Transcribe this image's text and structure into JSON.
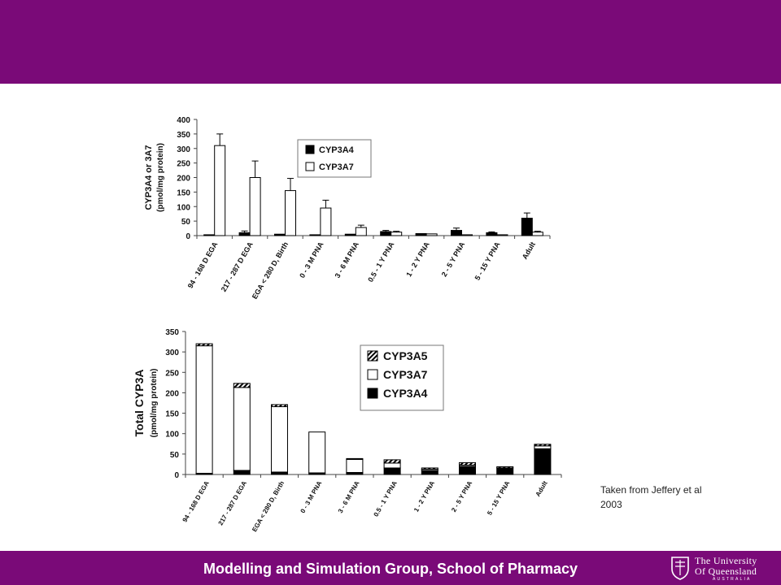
{
  "footer": {
    "text": "Modelling and Simulation Group, School of Pharmacy"
  },
  "logo": {
    "line1": "The University",
    "line2": "Of Queensland",
    "line3": "AUSTRALIA"
  },
  "caption": {
    "line1": "Taken from Jeffery et al",
    "line2": "2003"
  },
  "colors": {
    "band": "#7a0a78",
    "text_on_band": "#ffffff"
  },
  "chart_data": [
    {
      "type": "bar",
      "ylabel_line1": "CYP3A4 or 3A7",
      "ylabel_line2": "(pmol/mg protein)",
      "ylim": [
        0,
        400
      ],
      "yticks": [
        0,
        50,
        100,
        150,
        200,
        250,
        300,
        350,
        400
      ],
      "categories": [
        "94 - 168 D EGA",
        "217 - 287 D EGA",
        "EGA < 280 D, Birth",
        "0 - 3 M  PNA",
        "3 - 6 M  PNA",
        "0.5 - 1 Y  PNA",
        "1 - 2 Y  PNA",
        "2 - 5 Y  PNA",
        "5 - 15 Y  PNA",
        "Adult"
      ],
      "legend_position": "top-right",
      "series": [
        {
          "name": "CYP3A4",
          "fill": "#000000",
          "values": [
            3,
            10,
            5,
            3,
            5,
            14,
            7,
            18,
            10,
            60
          ],
          "errors": [
            0,
            6,
            0,
            0,
            0,
            4,
            0,
            8,
            3,
            18
          ]
        },
        {
          "name": "CYP3A7",
          "fill": "#ffffff",
          "values": [
            310,
            200,
            155,
            95,
            28,
            12,
            6,
            3,
            3,
            12
          ],
          "errors": [
            40,
            57,
            42,
            27,
            8,
            3,
            0,
            0,
            0,
            3
          ]
        }
      ]
    },
    {
      "type": "bar",
      "stacked": true,
      "ylabel_line1": "Total CYP3A",
      "ylabel_line2": "(pmol/mg protein)",
      "ylim": [
        0,
        350
      ],
      "yticks": [
        0,
        50,
        100,
        150,
        200,
        250,
        300,
        350
      ],
      "categories": [
        "94 - 168 D EGA",
        "217 - 287 D EGA",
        "EGA < 280 D, Birth",
        "0 - 3 M PNA",
        "3 - 6 M PNA",
        "0.5 - 1 Y PNA",
        "1 - 2 Y PNA",
        "2 - 5 Y PNA",
        "5 - 15 Y PNA",
        "Adult"
      ],
      "legend_position": "top-right",
      "legend_order": [
        "CYP3A5",
        "CYP3A7",
        "CYP3A4"
      ],
      "series": [
        {
          "name": "CYP3A4",
          "fill": "#000000",
          "values": [
            3,
            10,
            6,
            4,
            5,
            16,
            10,
            20,
            16,
            63
          ]
        },
        {
          "name": "CYP3A7",
          "fill": "#ffffff",
          "values": [
            312,
            203,
            160,
            100,
            32,
            12,
            3,
            3,
            0,
            7
          ]
        },
        {
          "name": "CYP3A5",
          "fill": "hatch",
          "values": [
            5,
            10,
            5,
            0,
            2,
            8,
            3,
            6,
            3,
            4
          ]
        }
      ]
    }
  ]
}
